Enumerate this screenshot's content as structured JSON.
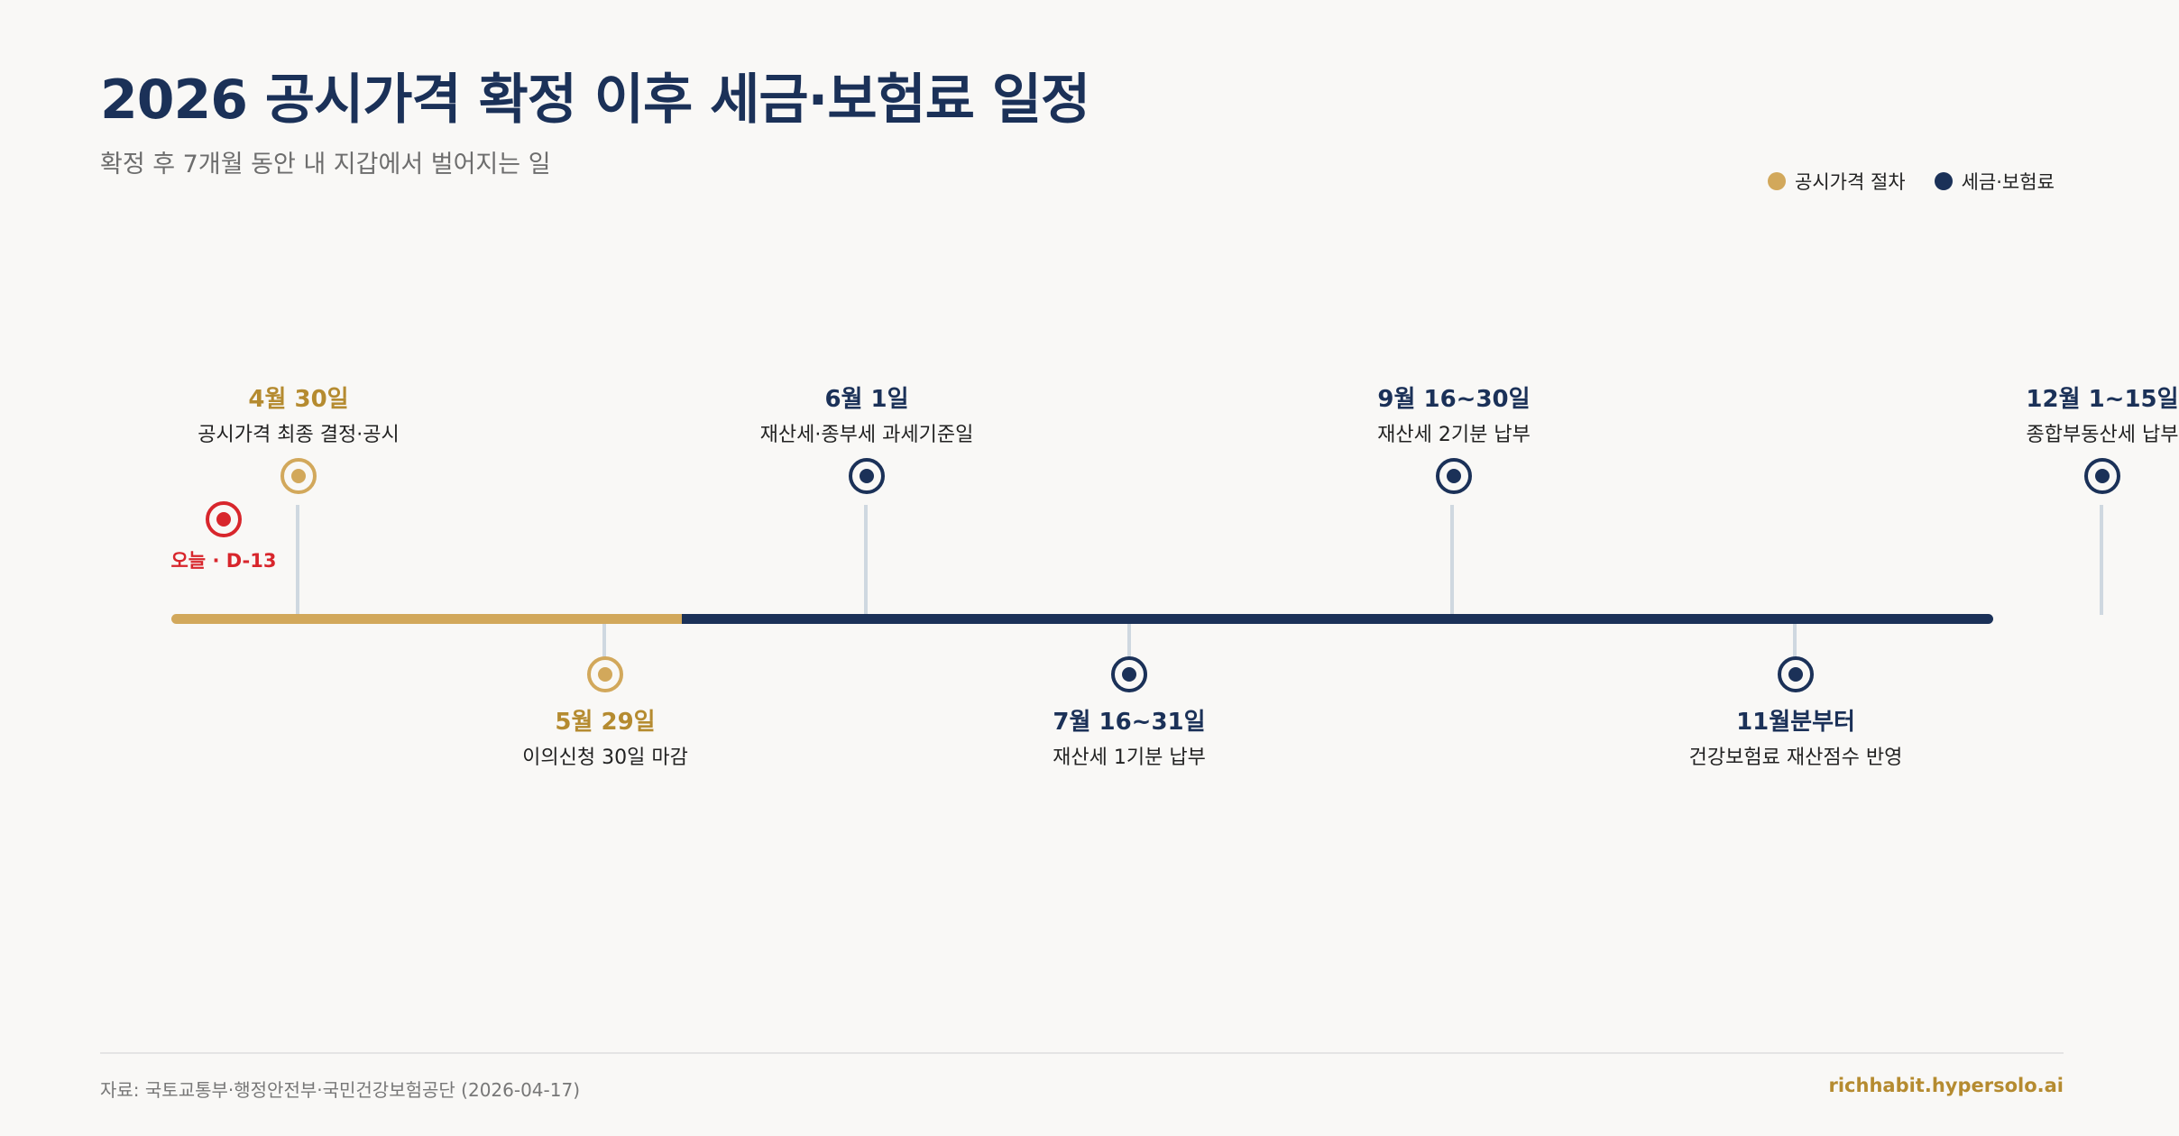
{
  "title": "2026 공시가격 확정 이후 세금·보험료 일정",
  "subtitle": "확정 후 7개월 동안 내 지갑에서 벌어지는 일",
  "legend": {
    "procedure": "공시가격 절차",
    "tax": "세금·보험료"
  },
  "colors": {
    "procedure": "#d2a85b",
    "tax": "#1b3158",
    "today": "#d8262c"
  },
  "today": {
    "label": "오늘 · D-13"
  },
  "events": [
    {
      "date": "4월 30일",
      "desc": "공시가격 최종 결정·공시",
      "category": "procedure"
    },
    {
      "date": "5월 29일",
      "desc": "이의신청 30일 마감",
      "category": "procedure"
    },
    {
      "date": "6월 1일",
      "desc": "재산세·종부세 과세기준일",
      "category": "tax"
    },
    {
      "date": "7월 16~31일",
      "desc": "재산세 1기분 납부",
      "category": "tax"
    },
    {
      "date": "9월 16~30일",
      "desc": "재산세 2기분 납부",
      "category": "tax"
    },
    {
      "date": "11월분부터",
      "desc": "건강보험료 재산점수 반영",
      "category": "tax"
    },
    {
      "date": "12월 1~15일",
      "desc": "종합부동산세 납부",
      "category": "tax"
    }
  ],
  "footer": {
    "source": "자료: 국토교통부·행정안전부·국민건강보험공단 (2026-04-17)",
    "site": "richhabit.hypersolo.ai"
  }
}
